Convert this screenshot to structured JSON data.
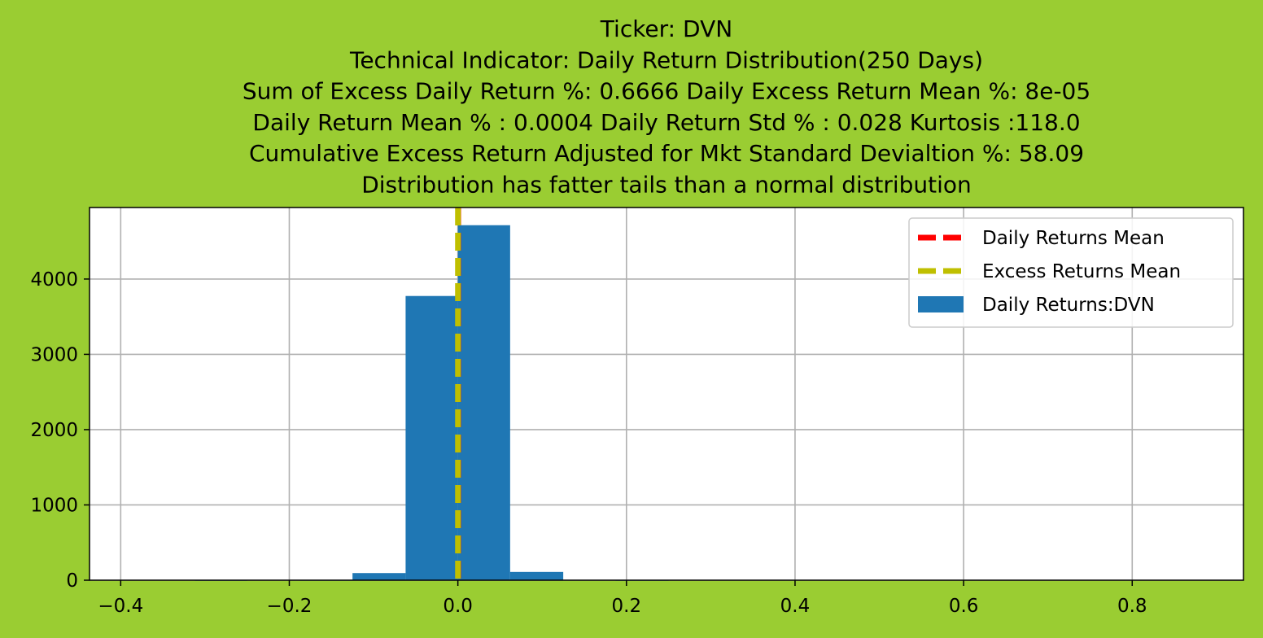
{
  "chart_data": {
    "type": "bar",
    "title_lines": [
      "Ticker: DVN",
      "Technical Indicator: Daily Return Distribution(250 Days)",
      "Sum of Excess Daily Return %: 0.6666   Daily Excess Return Mean %: 8e-05",
      "Daily Return Mean % : 0.0004    Daily Return Std % : 0.028  Kurtosis :118.0",
      "Cumulative Excess Return Adjusted for Mkt Standard Devialtion %: 58.09",
      "Distribution has fatter tails than a normal distribution"
    ],
    "xlabel": "",
    "ylabel": "",
    "xlim": [
      -0.437,
      0.932
    ],
    "ylim": [
      0,
      4950
    ],
    "grid": true,
    "legend_placement": "top-right",
    "x_ticks": [
      -0.4,
      -0.2,
      0.0,
      0.2,
      0.4,
      0.6,
      0.8
    ],
    "x_tick_labels": [
      "−0.4",
      "−0.2",
      "0.0",
      "0.2",
      "0.4",
      "0.6",
      "0.8"
    ],
    "y_ticks": [
      0,
      1000,
      2000,
      3000,
      4000
    ],
    "y_tick_labels": [
      "0",
      "1000",
      "2000",
      "3000",
      "4000"
    ],
    "bins": [
      {
        "x0": -0.375,
        "x1": -0.312,
        "count": 0
      },
      {
        "x0": -0.312,
        "x1": -0.25,
        "count": 1
      },
      {
        "x0": -0.25,
        "x1": -0.187,
        "count": 0
      },
      {
        "x0": -0.187,
        "x1": -0.125,
        "count": 2
      },
      {
        "x0": -0.125,
        "x1": -0.062,
        "count": 95
      },
      {
        "x0": -0.062,
        "x1": 0.0,
        "count": 3775
      },
      {
        "x0": 0.0,
        "x1": 0.062,
        "count": 4715
      },
      {
        "x0": 0.062,
        "x1": 0.125,
        "count": 110
      },
      {
        "x0": 0.125,
        "x1": 0.187,
        "count": 3
      },
      {
        "x0": 0.187,
        "x1": 0.25,
        "count": 1
      },
      {
        "x0": 0.25,
        "x1": 0.875,
        "count": 0
      }
    ],
    "vlines": [
      {
        "name": "Daily Returns Mean",
        "x": 0.0004,
        "color": "#ff0000",
        "style": "dashed"
      },
      {
        "name": "Excess Returns Mean",
        "x": 8e-05,
        "color": "#bfbf00",
        "style": "dashed"
      }
    ],
    "series": [
      {
        "name": "Daily Returns:DVN",
        "color": "#1f77b4"
      }
    ],
    "legend": [
      {
        "label": "Daily Returns Mean",
        "kind": "line",
        "color": "#ff0000"
      },
      {
        "label": "Excess Returns Mean",
        "kind": "line",
        "color": "#bfbf00"
      },
      {
        "label": "Daily Returns:DVN",
        "kind": "patch",
        "color": "#1f77b4"
      }
    ]
  }
}
